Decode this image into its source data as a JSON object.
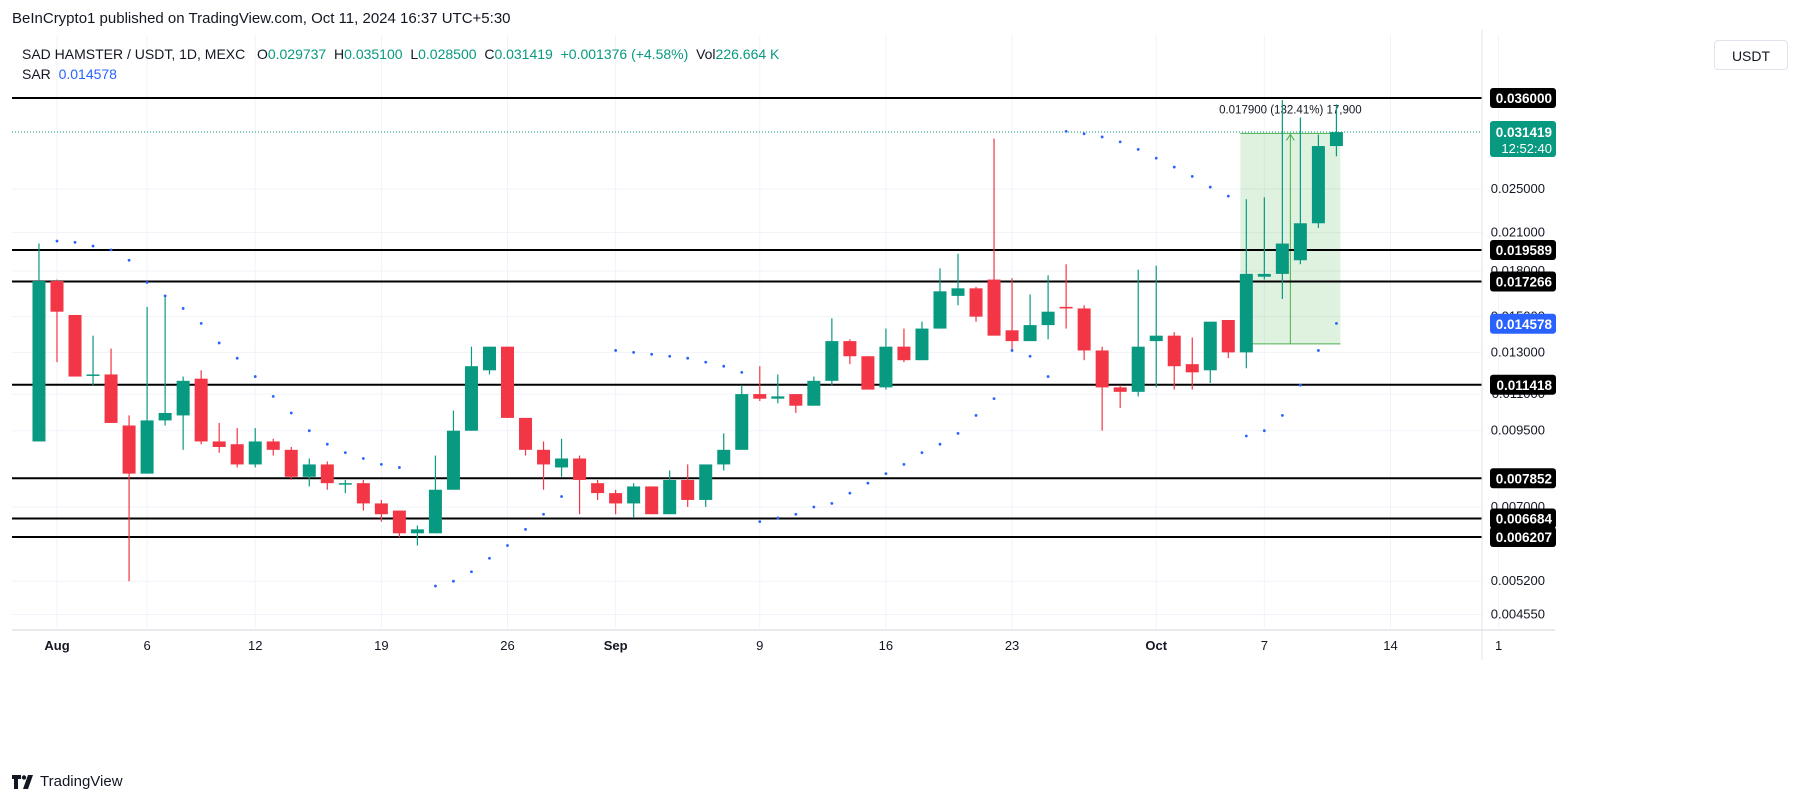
{
  "header": {
    "published": "BeInCrypto1 published on TradingView.com, Oct 11, 2024 16:37 UTC+5:30"
  },
  "legend": {
    "symbol": "SAD HAMSTER / USDT, 1D, MEXC",
    "open_label": "O",
    "open": "0.029737",
    "high_label": "H",
    "high": "0.035100",
    "low_label": "L",
    "low": "0.028500",
    "close_label": "C",
    "close": "0.031419",
    "change": "+0.001376 (+4.58%)",
    "vol_label": "Vol",
    "vol": "226.664 K",
    "sar_label": "SAR",
    "sar": "0.014578"
  },
  "currency_button": "USDT",
  "brand": "TradingView",
  "colors": {
    "up": "#089981",
    "down": "#f23645",
    "sar": "#2962ff",
    "measure": "#4caf50"
  },
  "chart_data": {
    "type": "candlestick",
    "x_ticks": [
      "Aug",
      "6",
      "12",
      "19",
      "26",
      "Sep",
      "9",
      "16",
      "23",
      "Oct",
      "7",
      "14",
      "1"
    ],
    "x_tick_days": [
      0,
      5,
      11,
      18,
      25,
      31,
      39,
      46,
      53,
      61,
      67,
      74,
      80
    ],
    "y_ticks": [
      "0.025000",
      "0.021000",
      "0.018000",
      "0.015000",
      "0.013000",
      "0.011000",
      "0.009500",
      "0.007000",
      "0.005200",
      "0.004550"
    ],
    "y_scale": "log",
    "grid": true,
    "candles": [
      {
        "d": -1,
        "o": 0.0091,
        "h": 0.0201,
        "l": 0.0091,
        "c": 0.0173
      },
      {
        "d": 0,
        "o": 0.0173,
        "h": 0.0174,
        "l": 0.0125,
        "c": 0.0153
      },
      {
        "d": 1,
        "o": 0.0151,
        "h": 0.0151,
        "l": 0.0118,
        "c": 0.0118
      },
      {
        "d": 2,
        "o": 0.0119,
        "h": 0.0139,
        "l": 0.0114,
        "c": 0.0119
      },
      {
        "d": 3,
        "o": 0.0119,
        "h": 0.0132,
        "l": 0.0098,
        "c": 0.0098
      },
      {
        "d": 4,
        "o": 0.0097,
        "h": 0.0101,
        "l": 0.0052,
        "c": 0.008
      },
      {
        "d": 5,
        "o": 0.008,
        "h": 0.0156,
        "l": 0.008,
        "c": 0.0099
      },
      {
        "d": 6,
        "o": 0.0099,
        "h": 0.0163,
        "l": 0.0097,
        "c": 0.0102
      },
      {
        "d": 7,
        "o": 0.0101,
        "h": 0.0118,
        "l": 0.0088,
        "c": 0.0116
      },
      {
        "d": 8,
        "o": 0.0117,
        "h": 0.0121,
        "l": 0.009,
        "c": 0.0091
      },
      {
        "d": 9,
        "o": 0.0091,
        "h": 0.0098,
        "l": 0.0087,
        "c": 0.0089
      },
      {
        "d": 10,
        "o": 0.009,
        "h": 0.0096,
        "l": 0.0082,
        "c": 0.0083
      },
      {
        "d": 11,
        "o": 0.0083,
        "h": 0.0096,
        "l": 0.0082,
        "c": 0.0091
      },
      {
        "d": 12,
        "o": 0.0091,
        "h": 0.0092,
        "l": 0.0086,
        "c": 0.0088
      },
      {
        "d": 13,
        "o": 0.0088,
        "h": 0.0089,
        "l": 0.0078,
        "c": 0.0079
      },
      {
        "d": 14,
        "o": 0.0079,
        "h": 0.0085,
        "l": 0.0076,
        "c": 0.0083
      },
      {
        "d": 15,
        "o": 0.0083,
        "h": 0.0084,
        "l": 0.0075,
        "c": 0.0077
      },
      {
        "d": 16,
        "o": 0.0077,
        "h": 0.0078,
        "l": 0.0074,
        "c": 0.0077
      },
      {
        "d": 17,
        "o": 0.0077,
        "h": 0.0078,
        "l": 0.0069,
        "c": 0.0071
      },
      {
        "d": 18,
        "o": 0.0071,
        "h": 0.0072,
        "l": 0.0066,
        "c": 0.0068
      },
      {
        "d": 19,
        "o": 0.0069,
        "h": 0.0069,
        "l": 0.0062,
        "c": 0.0063
      },
      {
        "d": 20,
        "o": 0.0063,
        "h": 0.0065,
        "l": 0.006,
        "c": 0.0064
      },
      {
        "d": 21,
        "o": 0.0063,
        "h": 0.0086,
        "l": 0.0063,
        "c": 0.0075
      },
      {
        "d": 22,
        "o": 0.0075,
        "h": 0.0103,
        "l": 0.0075,
        "c": 0.0095
      },
      {
        "d": 23,
        "o": 0.0095,
        "h": 0.0133,
        "l": 0.0095,
        "c": 0.0123
      },
      {
        "d": 24,
        "o": 0.0121,
        "h": 0.0133,
        "l": 0.0119,
        "c": 0.0133
      },
      {
        "d": 25,
        "o": 0.0133,
        "h": 0.0133,
        "l": 0.01,
        "c": 0.01
      },
      {
        "d": 26,
        "o": 0.01,
        "h": 0.01,
        "l": 0.0086,
        "c": 0.0088
      },
      {
        "d": 27,
        "o": 0.0088,
        "h": 0.0091,
        "l": 0.0075,
        "c": 0.0083
      },
      {
        "d": 28,
        "o": 0.0082,
        "h": 0.0092,
        "l": 0.0079,
        "c": 0.0085
      },
      {
        "d": 29,
        "o": 0.0085,
        "h": 0.0086,
        "l": 0.0068,
        "c": 0.0078
      },
      {
        "d": 30,
        "o": 0.0077,
        "h": 0.0078,
        "l": 0.0072,
        "c": 0.0074
      },
      {
        "d": 31,
        "o": 0.0074,
        "h": 0.0075,
        "l": 0.0068,
        "c": 0.0071
      },
      {
        "d": 32,
        "o": 0.0071,
        "h": 0.0077,
        "l": 0.0067,
        "c": 0.0076
      },
      {
        "d": 33,
        "o": 0.0076,
        "h": 0.0076,
        "l": 0.0068,
        "c": 0.0068
      },
      {
        "d": 34,
        "o": 0.0068,
        "h": 0.0081,
        "l": 0.0068,
        "c": 0.0078
      },
      {
        "d": 35,
        "o": 0.0078,
        "h": 0.0083,
        "l": 0.007,
        "c": 0.0072
      },
      {
        "d": 36,
        "o": 0.0072,
        "h": 0.0083,
        "l": 0.007,
        "c": 0.0083
      },
      {
        "d": 37,
        "o": 0.0083,
        "h": 0.0094,
        "l": 0.0081,
        "c": 0.0088
      },
      {
        "d": 38,
        "o": 0.0088,
        "h": 0.0114,
        "l": 0.0088,
        "c": 0.011
      },
      {
        "d": 39,
        "o": 0.011,
        "h": 0.0123,
        "l": 0.0107,
        "c": 0.0108
      },
      {
        "d": 40,
        "o": 0.0108,
        "h": 0.0119,
        "l": 0.0106,
        "c": 0.0109
      },
      {
        "d": 41,
        "o": 0.011,
        "h": 0.011,
        "l": 0.0102,
        "c": 0.0105
      },
      {
        "d": 42,
        "o": 0.0105,
        "h": 0.0118,
        "l": 0.0105,
        "c": 0.0116
      },
      {
        "d": 43,
        "o": 0.0116,
        "h": 0.0149,
        "l": 0.0114,
        "c": 0.0136
      },
      {
        "d": 44,
        "o": 0.0136,
        "h": 0.0137,
        "l": 0.0124,
        "c": 0.0128
      },
      {
        "d": 45,
        "o": 0.0128,
        "h": 0.0128,
        "l": 0.0112,
        "c": 0.0112
      },
      {
        "d": 46,
        "o": 0.0113,
        "h": 0.0143,
        "l": 0.0112,
        "c": 0.0133
      },
      {
        "d": 47,
        "o": 0.0133,
        "h": 0.0143,
        "l": 0.0125,
        "c": 0.0126
      },
      {
        "d": 48,
        "o": 0.0126,
        "h": 0.0147,
        "l": 0.0126,
        "c": 0.0143
      },
      {
        "d": 49,
        "o": 0.0143,
        "h": 0.0182,
        "l": 0.0143,
        "c": 0.0166
      },
      {
        "d": 50,
        "o": 0.0163,
        "h": 0.0193,
        "l": 0.0157,
        "c": 0.0168
      },
      {
        "d": 51,
        "o": 0.0168,
        "h": 0.0169,
        "l": 0.0147,
        "c": 0.015
      },
      {
        "d": 52,
        "o": 0.0174,
        "h": 0.0306,
        "l": 0.0139,
        "c": 0.0139
      },
      {
        "d": 53,
        "o": 0.0142,
        "h": 0.0175,
        "l": 0.0131,
        "c": 0.0136
      },
      {
        "d": 54,
        "o": 0.0136,
        "h": 0.0164,
        "l": 0.0136,
        "c": 0.0145
      },
      {
        "d": 55,
        "o": 0.0145,
        "h": 0.0177,
        "l": 0.0137,
        "c": 0.0153
      },
      {
        "d": 56,
        "o": 0.0156,
        "h": 0.0185,
        "l": 0.0143,
        "c": 0.0155
      },
      {
        "d": 57,
        "o": 0.0155,
        "h": 0.0157,
        "l": 0.0126,
        "c": 0.0131
      },
      {
        "d": 58,
        "o": 0.0131,
        "h": 0.0133,
        "l": 0.0095,
        "c": 0.0113
      },
      {
        "d": 59,
        "o": 0.0113,
        "h": 0.0114,
        "l": 0.0104,
        "c": 0.0111
      },
      {
        "d": 60,
        "o": 0.0111,
        "h": 0.0181,
        "l": 0.0109,
        "c": 0.0133
      },
      {
        "d": 61,
        "o": 0.0136,
        "h": 0.0184,
        "l": 0.0113,
        "c": 0.0139
      },
      {
        "d": 62,
        "o": 0.0139,
        "h": 0.0141,
        "l": 0.0112,
        "c": 0.0123
      },
      {
        "d": 63,
        "o": 0.0124,
        "h": 0.0138,
        "l": 0.0112,
        "c": 0.012
      },
      {
        "d": 64,
        "o": 0.0121,
        "h": 0.0147,
        "l": 0.0115,
        "c": 0.0147
      },
      {
        "d": 65,
        "o": 0.0148,
        "h": 0.0148,
        "l": 0.0127,
        "c": 0.013
      },
      {
        "d": 66,
        "o": 0.013,
        "h": 0.024,
        "l": 0.0122,
        "c": 0.0178
      },
      {
        "d": 67,
        "o": 0.0176,
        "h": 0.0242,
        "l": 0.0174,
        "c": 0.0178
      },
      {
        "d": 68,
        "o": 0.0178,
        "h": 0.0357,
        "l": 0.0161,
        "c": 0.0201
      },
      {
        "d": 69,
        "o": 0.0188,
        "h": 0.0333,
        "l": 0.0185,
        "c": 0.0218
      },
      {
        "d": 70,
        "o": 0.0218,
        "h": 0.0311,
        "l": 0.0214,
        "c": 0.0297
      },
      {
        "d": 71,
        "o": 0.0297,
        "h": 0.0351,
        "l": 0.0285,
        "c": 0.0314
      }
    ],
    "sar": [
      {
        "d": 0,
        "v": 0.0203
      },
      {
        "d": 1,
        "v": 0.0202
      },
      {
        "d": 2,
        "v": 0.0199
      },
      {
        "d": 3,
        "v": 0.0196
      },
      {
        "d": 4,
        "v": 0.0188
      },
      {
        "d": 5,
        "v": 0.0172
      },
      {
        "d": 6,
        "v": 0.0163
      },
      {
        "d": 7,
        "v": 0.0155
      },
      {
        "d": 8,
        "v": 0.0146
      },
      {
        "d": 9,
        "v": 0.0135
      },
      {
        "d": 10,
        "v": 0.0127
      },
      {
        "d": 11,
        "v": 0.0118
      },
      {
        "d": 12,
        "v": 0.0109
      },
      {
        "d": 13,
        "v": 0.0102
      },
      {
        "d": 14,
        "v": 0.0095
      },
      {
        "d": 15,
        "v": 0.009
      },
      {
        "d": 16,
        "v": 0.0087
      },
      {
        "d": 17,
        "v": 0.0085
      },
      {
        "d": 18,
        "v": 0.0083
      },
      {
        "d": 19,
        "v": 0.0082
      },
      {
        "d": 21,
        "v": 0.0051
      },
      {
        "d": 22,
        "v": 0.0052
      },
      {
        "d": 23,
        "v": 0.0054
      },
      {
        "d": 24,
        "v": 0.0057
      },
      {
        "d": 25,
        "v": 0.006
      },
      {
        "d": 26,
        "v": 0.0064
      },
      {
        "d": 27,
        "v": 0.0068
      },
      {
        "d": 28,
        "v": 0.0073
      },
      {
        "d": 31,
        "v": 0.0131
      },
      {
        "d": 32,
        "v": 0.013
      },
      {
        "d": 33,
        "v": 0.0129
      },
      {
        "d": 34,
        "v": 0.0128
      },
      {
        "d": 35,
        "v": 0.0127
      },
      {
        "d": 36,
        "v": 0.0125
      },
      {
        "d": 37,
        "v": 0.0123
      },
      {
        "d": 38,
        "v": 0.012
      },
      {
        "d": 39,
        "v": 0.0066
      },
      {
        "d": 40,
        "v": 0.0067
      },
      {
        "d": 41,
        "v": 0.0068
      },
      {
        "d": 42,
        "v": 0.007
      },
      {
        "d": 43,
        "v": 0.0071
      },
      {
        "d": 44,
        "v": 0.0074
      },
      {
        "d": 45,
        "v": 0.0077
      },
      {
        "d": 46,
        "v": 0.008
      },
      {
        "d": 47,
        "v": 0.0083
      },
      {
        "d": 48,
        "v": 0.0087
      },
      {
        "d": 49,
        "v": 0.009
      },
      {
        "d": 50,
        "v": 0.0094
      },
      {
        "d": 51,
        "v": 0.0101
      },
      {
        "d": 52,
        "v": 0.0108
      },
      {
        "d": 53,
        "v": 0.0131
      },
      {
        "d": 54,
        "v": 0.0128
      },
      {
        "d": 55,
        "v": 0.0118
      },
      {
        "d": 56,
        "v": 0.0315
      },
      {
        "d": 57,
        "v": 0.0312
      },
      {
        "d": 58,
        "v": 0.0308
      },
      {
        "d": 59,
        "v": 0.0302
      },
      {
        "d": 60,
        "v": 0.0293
      },
      {
        "d": 61,
        "v": 0.0283
      },
      {
        "d": 62,
        "v": 0.0273
      },
      {
        "d": 63,
        "v": 0.0263
      },
      {
        "d": 64,
        "v": 0.0252
      },
      {
        "d": 65,
        "v": 0.0243
      },
      {
        "d": 66,
        "v": 0.0093
      },
      {
        "d": 67,
        "v": 0.0095
      },
      {
        "d": 68,
        "v": 0.0101
      },
      {
        "d": 69,
        "v": 0.0114
      },
      {
        "d": 70,
        "v": 0.0131
      },
      {
        "d": 71,
        "v": 0.0146
      }
    ],
    "horizontal_levels": [
      {
        "value": 0.036,
        "label": "0.036000"
      },
      {
        "value": 0.019589,
        "label": "0.019589"
      },
      {
        "value": 0.017266,
        "label": "0.017266"
      },
      {
        "value": 0.011418,
        "label": "0.011418"
      },
      {
        "value": 0.007852,
        "label": "0.007852"
      },
      {
        "value": 0.006684,
        "label": "0.006684"
      },
      {
        "value": 0.006207,
        "label": "0.006207"
      }
    ],
    "last_price": {
      "value": 0.031419,
      "label": "0.031419",
      "countdown": "12:52:40"
    },
    "sar_price": {
      "value": 0.014578,
      "label": "0.014578"
    },
    "measure": {
      "d_start": 66,
      "d_end": 71,
      "low": 0.01345,
      "high": 0.03124,
      "label": "0.017900 (132.41%) 17,900"
    }
  }
}
